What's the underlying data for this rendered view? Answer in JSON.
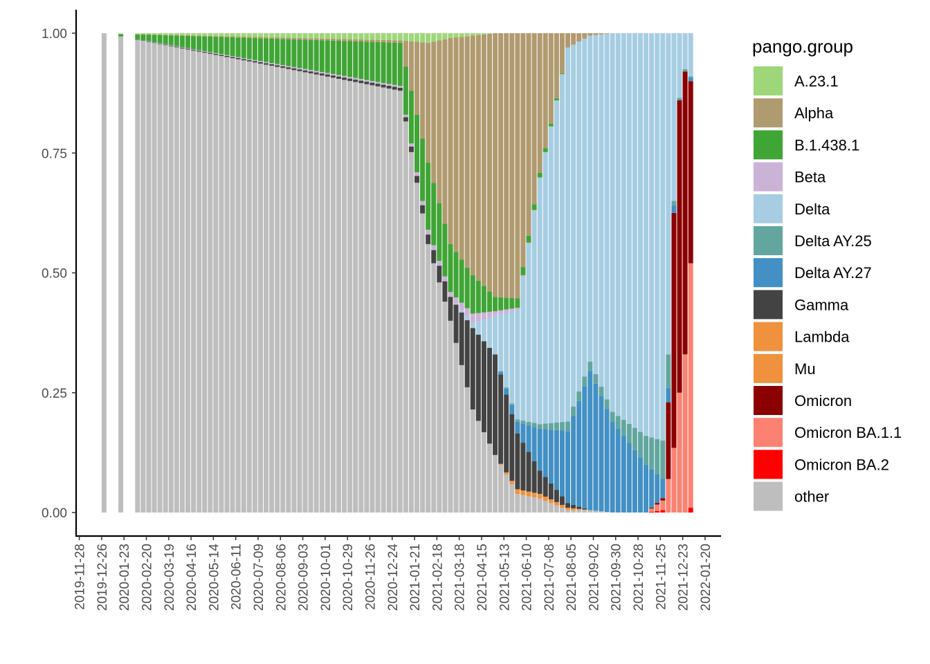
{
  "chart_data": {
    "type": "bar",
    "stacked": true,
    "normalized": true,
    "legend": {
      "title": "pango.group",
      "placement": "right"
    },
    "grid": false,
    "ylim": [
      0,
      1
    ],
    "y_ticks": [
      "0.00",
      "0.25",
      "0.50",
      "0.75",
      "1.00"
    ],
    "y_tick_values": [
      0,
      0.25,
      0.5,
      0.75,
      1
    ],
    "x_ticks": [
      "2019-11-28",
      "2019-12-26",
      "2020-01-23",
      "2020-02-20",
      "2020-03-19",
      "2020-04-16",
      "2020-05-14",
      "2020-06-11",
      "2020-07-09",
      "2020-08-06",
      "2020-09-03",
      "2020-10-01",
      "2020-10-29",
      "2020-11-26",
      "2020-12-24",
      "2021-01-21",
      "2021-02-18",
      "2021-03-18",
      "2021-04-15",
      "2021-05-13",
      "2021-06-10",
      "2021-07-08",
      "2021-08-05",
      "2021-09-02",
      "2021-09-30",
      "2021-10-28",
      "2021-11-25",
      "2021-12-23",
      "2022-01-20"
    ],
    "xlim": [
      "2019-11-24",
      "2022-02-09"
    ],
    "bar_interval": "week",
    "bar_width_days": 6.1,
    "anchors": [
      {
        "date": "2019-12-29",
        "A.23.1": 0,
        "Alpha": 0,
        "B.1.438.1": 0,
        "Beta": 0,
        "Delta": 0,
        "Delta AY.25": 0,
        "Delta AY.27": 0,
        "Gamma": 0,
        "Lambda": 0,
        "Mu": 0,
        "Omicron": 0,
        "Omicron BA.1.1": 0,
        "Omicron BA.2": 0,
        "other": 1
      },
      {
        "date": "2021-01-03",
        "A.23.1": 0.015,
        "Alpha": 0.005,
        "B.1.438.1": 0.09,
        "Beta": 0.004,
        "Delta": 0,
        "Delta AY.25": 0,
        "Delta AY.27": 0,
        "Gamma": 0.006,
        "Lambda": 0,
        "Mu": 0,
        "Omicron": 0,
        "Omicron BA.1.1": 0,
        "Omicron BA.2": 0,
        "other": 0.88
      },
      {
        "date": "2021-02-07",
        "A.23.1": 0.02,
        "Alpha": 0.25,
        "B.1.438.1": 0.14,
        "Beta": 0.01,
        "Delta": 0,
        "Delta AY.25": 0,
        "Delta AY.27": 0,
        "Gamma": 0.02,
        "Lambda": 0,
        "Mu": 0,
        "Omicron": 0,
        "Omicron BA.1.1": 0,
        "Omicron BA.2": 0,
        "other": 0.56
      },
      {
        "date": "2021-03-07",
        "A.23.1": 0.01,
        "Alpha": 0.43,
        "B.1.438.1": 0.1,
        "Beta": 0.01,
        "Delta": 0,
        "Delta AY.25": 0,
        "Delta AY.27": 0,
        "Gamma": 0.05,
        "Lambda": 0,
        "Mu": 0,
        "Omicron": 0,
        "Omicron BA.1.1": 0,
        "Omicron BA.2": 0,
        "other": 0.4
      },
      {
        "date": "2021-04-04",
        "A.23.1": 0.005,
        "Alpha": 0.5,
        "B.1.438.1": 0.08,
        "Beta": 0.02,
        "Delta": 0.01,
        "Delta AY.25": 0,
        "Delta AY.27": 0,
        "Gamma": 0.17,
        "Lambda": 0,
        "Mu": 0,
        "Omicron": 0,
        "Omicron BA.1.1": 0,
        "Omicron BA.2": 0,
        "other": 0.215
      },
      {
        "date": "2021-05-02",
        "A.23.1": 0,
        "Alpha": 0.55,
        "B.1.438.1": 0.03,
        "Beta": 0.01,
        "Delta": 0.08,
        "Delta AY.25": 0,
        "Delta AY.27": 0,
        "Gamma": 0.21,
        "Lambda": 0,
        "Mu": 0,
        "Omicron": 0,
        "Omicron BA.1.1": 0,
        "Omicron BA.2": 0,
        "other": 0.12
      },
      {
        "date": "2021-05-30",
        "A.23.1": 0,
        "Alpha": 0.57,
        "B.1.438.1": 0.02,
        "Beta": 0.005,
        "Delta": 0.235,
        "Delta AY.25": 0.005,
        "Delta AY.27": 0.025,
        "Gamma": 0.12,
        "Lambda": 0.005,
        "Mu": 0.005,
        "Omicron": 0,
        "Omicron BA.1.1": 0,
        "Omicron BA.2": 0,
        "other": 0.04
      },
      {
        "date": "2021-06-27",
        "A.23.1": 0,
        "Alpha": 0.3,
        "B.1.438.1": 0.01,
        "Beta": 0,
        "Delta": 0.53,
        "Delta AY.25": 0.01,
        "Delta AY.27": 0.09,
        "Gamma": 0.05,
        "Lambda": 0.003,
        "Mu": 0.007,
        "Omicron": 0,
        "Omicron BA.1.1": 0,
        "Omicron BA.2": 0,
        "other": 0.03
      },
      {
        "date": "2021-08-01",
        "A.23.1": 0,
        "Alpha": 0.03,
        "B.1.438.1": 0,
        "Beta": 0,
        "Delta": 0.78,
        "Delta AY.25": 0.02,
        "Delta AY.27": 0.15,
        "Gamma": 0.01,
        "Lambda": 0.003,
        "Mu": 0.002,
        "Omicron": 0,
        "Omicron BA.1.1": 0,
        "Omicron BA.2": 0,
        "other": 0.005
      },
      {
        "date": "2021-08-29",
        "A.23.1": 0,
        "Alpha": 0.005,
        "B.1.438.1": 0,
        "Beta": 0,
        "Delta": 0.68,
        "Delta AY.25": 0.02,
        "Delta AY.27": 0.29,
        "Gamma": 0,
        "Lambda": 0,
        "Mu": 0,
        "Omicron": 0,
        "Omicron BA.1.1": 0,
        "Omicron BA.2": 0,
        "other": 0.005
      },
      {
        "date": "2021-09-26",
        "A.23.1": 0,
        "Alpha": 0,
        "B.1.438.1": 0,
        "Beta": 0,
        "Delta": 0.79,
        "Delta AY.25": 0.02,
        "Delta AY.27": 0.19,
        "Gamma": 0,
        "Lambda": 0,
        "Mu": 0,
        "Omicron": 0,
        "Omicron BA.1.1": 0,
        "Omicron BA.2": 0,
        "other": 0
      },
      {
        "date": "2021-11-07",
        "A.23.1": 0,
        "Alpha": 0,
        "B.1.438.1": 0,
        "Beta": 0,
        "Delta": 0.84,
        "Delta AY.25": 0.06,
        "Delta AY.27": 0.1,
        "Gamma": 0,
        "Lambda": 0,
        "Mu": 0,
        "Omicron": 0,
        "Omicron BA.1.1": 0,
        "Omicron BA.2": 0,
        "other": 0
      },
      {
        "date": "2021-11-28",
        "A.23.1": 0,
        "Alpha": 0,
        "B.1.438.1": 0,
        "Beta": 0,
        "Delta": 0.85,
        "Delta AY.25": 0.08,
        "Delta AY.27": 0.04,
        "Gamma": 0,
        "Lambda": 0,
        "Mu": 0,
        "Omicron": 0.005,
        "Omicron BA.1.1": 0.02,
        "Omicron BA.2": 0.005,
        "other": 0
      },
      {
        "date": "2021-12-05",
        "A.23.1": 0,
        "Alpha": 0,
        "B.1.438.1": 0,
        "Beta": 0,
        "Delta": 0.67,
        "Delta AY.25": 0.07,
        "Delta AY.27": 0.03,
        "Gamma": 0,
        "Lambda": 0,
        "Mu": 0,
        "Omicron": 0.16,
        "Omicron BA.1.1": 0.07,
        "Omicron BA.2": 0,
        "other": 0
      },
      {
        "date": "2021-12-12",
        "A.23.1": 0,
        "Alpha": 0,
        "B.1.438.1": 0,
        "Beta": 0,
        "Delta": 0.35,
        "Delta AY.25": 0.01,
        "Delta AY.27": 0.015,
        "Gamma": 0,
        "Lambda": 0,
        "Mu": 0,
        "Omicron": 0.49,
        "Omicron BA.1.1": 0.135,
        "Omicron BA.2": 0,
        "other": 0
      },
      {
        "date": "2021-12-19",
        "A.23.1": 0,
        "Alpha": 0,
        "B.1.438.1": 0,
        "Beta": 0,
        "Delta": 0.135,
        "Delta AY.25": 0.005,
        "Delta AY.27": 0,
        "Gamma": 0,
        "Lambda": 0,
        "Mu": 0,
        "Omicron": 0.61,
        "Omicron BA.1.1": 0.25,
        "Omicron BA.2": 0,
        "other": 0
      },
      {
        "date": "2021-12-26",
        "A.23.1": 0,
        "Alpha": 0,
        "B.1.438.1": 0,
        "Beta": 0,
        "Delta": 0.075,
        "Delta AY.25": 0.005,
        "Delta AY.27": 0,
        "Gamma": 0,
        "Lambda": 0,
        "Mu": 0,
        "Omicron": 0.59,
        "Omicron BA.1.1": 0.33,
        "Omicron BA.2": 0,
        "other": 0
      },
      {
        "date": "2022-01-02",
        "A.23.1": 0,
        "Alpha": 0,
        "B.1.438.1": 0,
        "Beta": 0,
        "Delta": 0.09,
        "Delta AY.25": 0.002,
        "Delta AY.27": 0.008,
        "Gamma": 0,
        "Lambda": 0,
        "Mu": 0,
        "Omicron": 0.38,
        "Omicron BA.1.1": 0.51,
        "Omicron BA.2": 0.01,
        "other": 0
      }
    ],
    "series": [
      {
        "name": "A.23.1",
        "color": "#9ed67a"
      },
      {
        "name": "Alpha",
        "color": "#b09a6f"
      },
      {
        "name": "B.1.438.1",
        "color": "#3fa535"
      },
      {
        "name": "Beta",
        "color": "#cbb3d8"
      },
      {
        "name": "Delta",
        "color": "#a6cde2"
      },
      {
        "name": "Delta AY.25",
        "color": "#62a69f"
      },
      {
        "name": "Delta AY.27",
        "color": "#4290c4"
      },
      {
        "name": "Gamma",
        "color": "#434343"
      },
      {
        "name": "Lambda",
        "color": "#f0913e"
      },
      {
        "name": "Mu",
        "color": "#f0913e"
      },
      {
        "name": "Omicron",
        "color": "#8b0000"
      },
      {
        "name": "Omicron BA.1.1",
        "color": "#fb8272"
      },
      {
        "name": "Omicron BA.2",
        "color": "#fe0000"
      },
      {
        "name": "other",
        "color": "#bebebe"
      }
    ]
  }
}
